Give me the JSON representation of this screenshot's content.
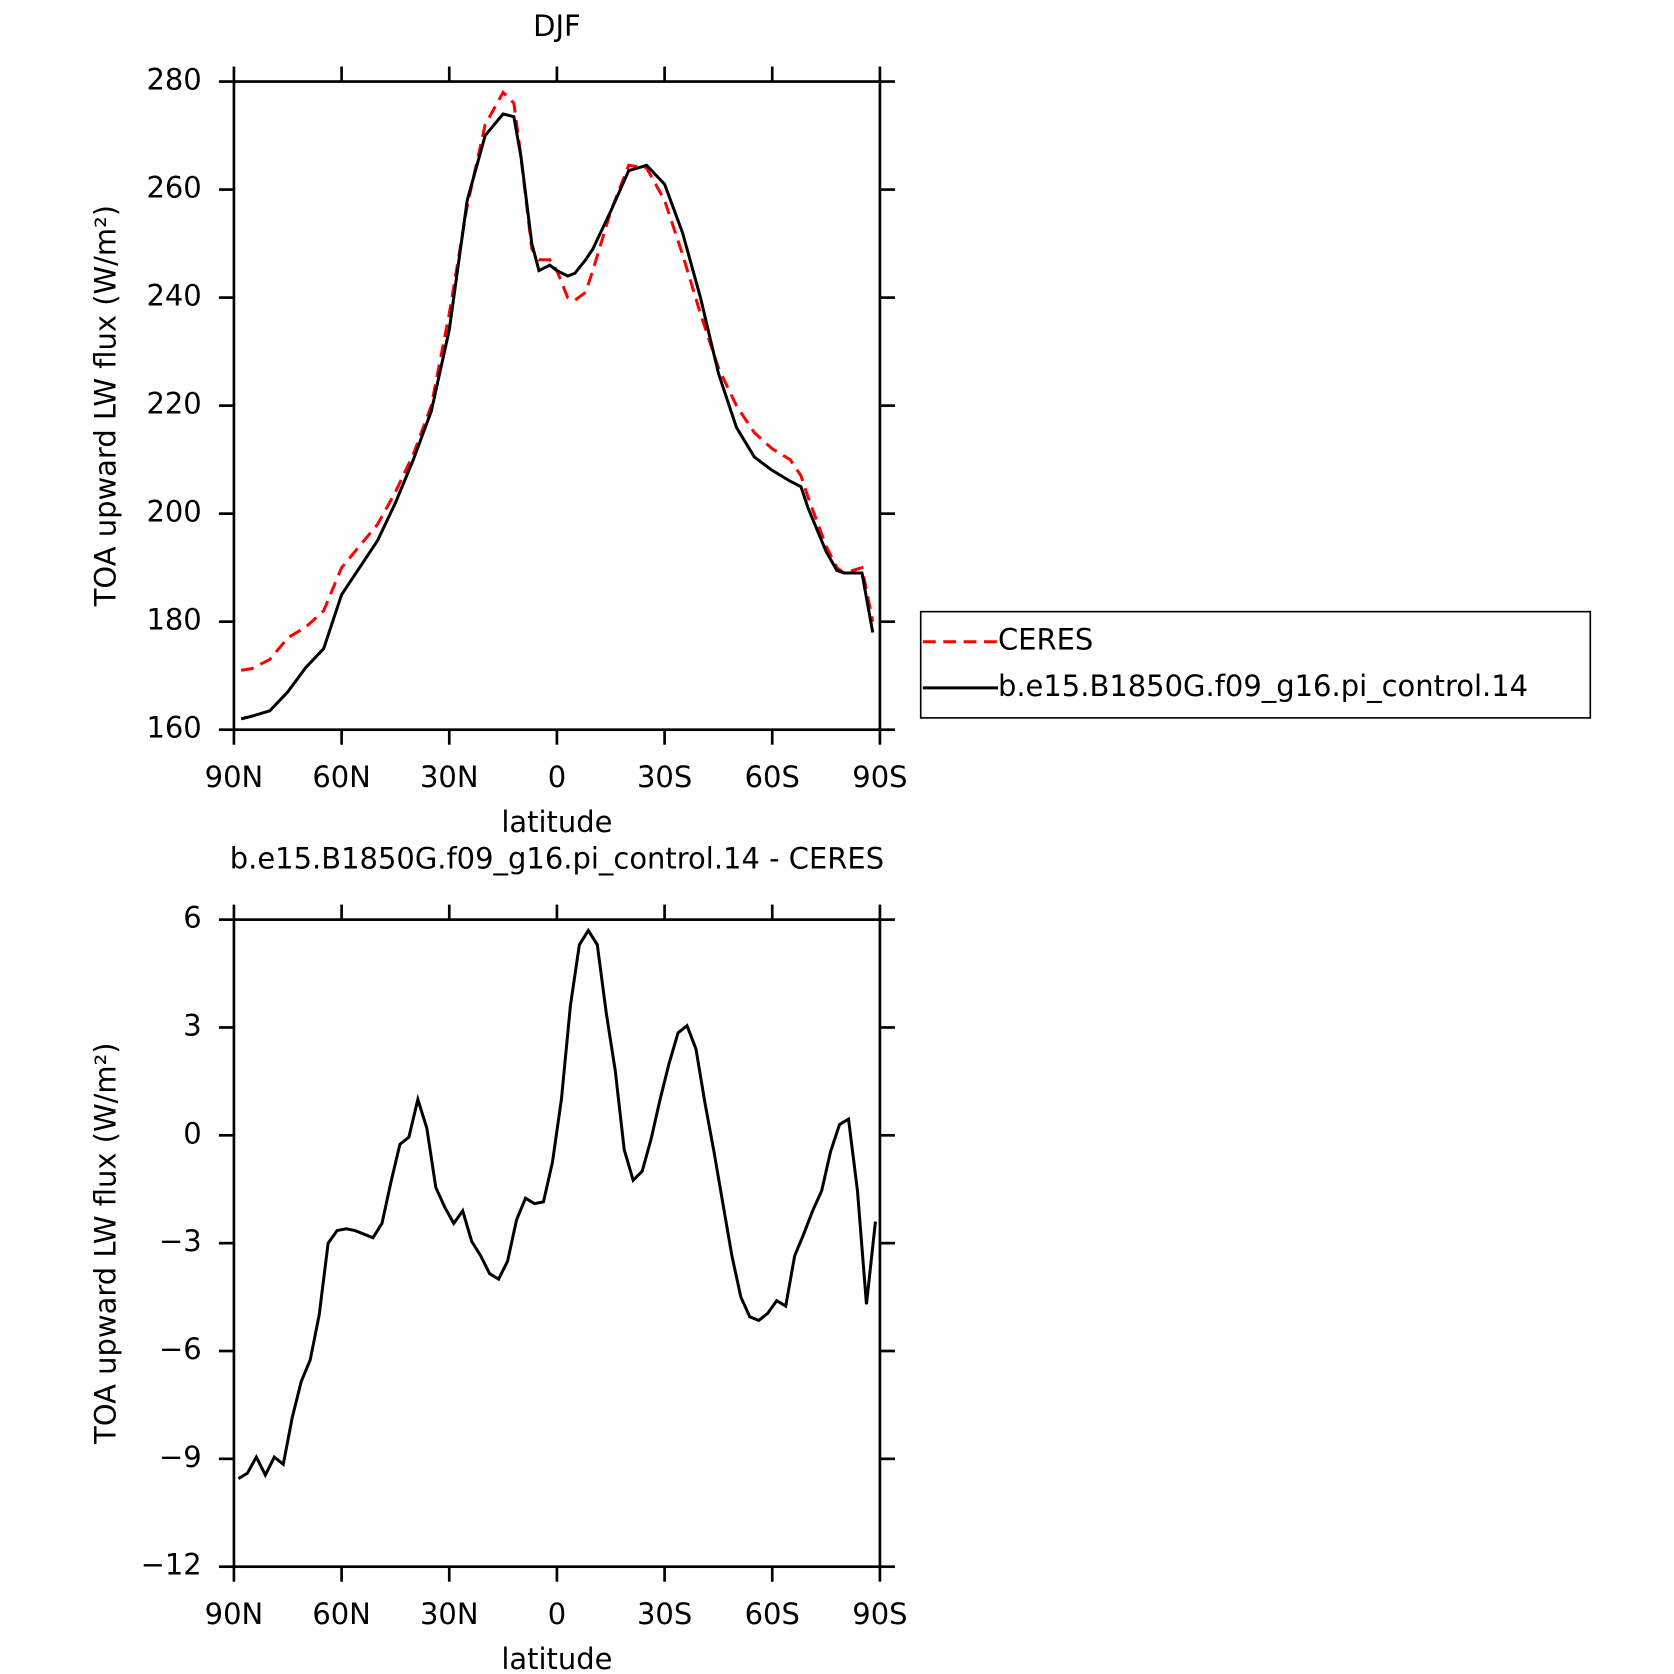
{
  "chart_data": [
    {
      "type": "line",
      "title": "DJF",
      "xlabel": "latitude",
      "ylabel": "TOA upward LW flux (W/m²)",
      "x": [
        88,
        85,
        80,
        75,
        70,
        65,
        60,
        55,
        50,
        45,
        40,
        35,
        30,
        25,
        20,
        15,
        12,
        10,
        7,
        5,
        2,
        0,
        -3,
        -5,
        -8,
        -10,
        -15,
        -20,
        -25,
        -30,
        -35,
        -40,
        -45,
        -50,
        -55,
        -60,
        -65,
        -68,
        -70,
        -75,
        -78,
        -80,
        -85,
        -88
      ],
      "series": [
        {
          "name": "CERES",
          "color": "#ff0000",
          "dash": true,
          "values": [
            171,
            171.3,
            173,
            177,
            179,
            182,
            190,
            194,
            198,
            204,
            211,
            220,
            237,
            257,
            272,
            278,
            276,
            266,
            249,
            247,
            247,
            245,
            240,
            239.5,
            241,
            245,
            256,
            264.5,
            264,
            258,
            248,
            237,
            227,
            220,
            215,
            212,
            210,
            207,
            203,
            194,
            190,
            189,
            190,
            180
          ]
        },
        {
          "name": "b.e15.B1850G.f09_g16.pi_control.14",
          "color": "#000000",
          "dash": false,
          "values": [
            162,
            162.5,
            163.5,
            167,
            171.5,
            175,
            185,
            190,
            195,
            202,
            210,
            219,
            234,
            258,
            270,
            274,
            273.5,
            266,
            250,
            245,
            246,
            245,
            244,
            244.5,
            247,
            249,
            256,
            263.5,
            264.5,
            261,
            252,
            240,
            226,
            216,
            210.5,
            208,
            206,
            205,
            201,
            193,
            189.5,
            189,
            189,
            178
          ]
        }
      ],
      "xlim": [
        90,
        -90
      ],
      "xticks": [
        {
          "value": 90,
          "label": "90N"
        },
        {
          "value": 60,
          "label": "60N"
        },
        {
          "value": 30,
          "label": "30N"
        },
        0,
        {
          "value": -30,
          "label": "30S"
        },
        {
          "value": -60,
          "label": "60S"
        },
        {
          "value": -90,
          "label": "90S"
        }
      ],
      "ylim": [
        160,
        280
      ],
      "yticks": [
        160,
        180,
        200,
        220,
        240,
        260,
        280
      ],
      "legend": "right"
    },
    {
      "type": "line",
      "title": "b.e15.B1850G.f09_g16.pi_control.14 - CERES",
      "xlabel": "latitude",
      "ylabel": "TOA upward LW flux (W/m²)",
      "x": [
        88.75,
        86.25,
        83.75,
        81.25,
        78.75,
        76.25,
        73.75,
        71.25,
        68.75,
        66.25,
        63.75,
        61.25,
        58.75,
        56.25,
        53.75,
        51.25,
        48.75,
        46.25,
        43.75,
        41.25,
        38.75,
        36.25,
        33.75,
        31.25,
        28.75,
        26.25,
        23.75,
        21.25,
        18.75,
        16.25,
        13.75,
        11.25,
        8.75,
        6.25,
        3.75,
        1.25,
        -1.25,
        -3.75,
        -6.25,
        -8.75,
        -11.25,
        -13.75,
        -16.25,
        -18.75,
        -21.25,
        -23.75,
        -26.25,
        -28.75,
        -31.25,
        -33.75,
        -36.25,
        -38.75,
        -41.25,
        -43.75,
        -46.25,
        -48.75,
        -51.25,
        -53.75,
        -56.25,
        -58.75,
        -61.25,
        -63.75,
        -66.25,
        -68.75,
        -71.25,
        -73.75,
        -76.25,
        -78.75,
        -81.25,
        -83.75,
        -86.25,
        -88.75
      ],
      "series": [
        {
          "name": "b.e15.B1850G.f09_g16.pi_control.14 - CERES",
          "color": "#000000",
          "dash": false,
          "values": [
            -9.55,
            -9.4,
            -8.95,
            -9.45,
            -8.95,
            -9.15,
            -7.85,
            -6.85,
            -6.25,
            -5,
            -3,
            -2.65,
            -2.6,
            -2.65,
            -2.75,
            -2.85,
            -2.45,
            -1.3,
            -0.25,
            -0.05,
            1,
            0.2,
            -1.45,
            -2,
            -2.45,
            -2.1,
            -2.95,
            -3.35,
            -3.85,
            -4,
            -3.5,
            -2.35,
            -1.75,
            -1.9,
            -1.85,
            -0.75,
            1,
            3.6,
            5.3,
            5.7,
            5.3,
            3.4,
            1.8,
            -0.4,
            -1.25,
            -1,
            -0.1,
            1,
            2,
            2.85,
            3.05,
            2.4,
            0.9,
            -0.45,
            -1.9,
            -3.35,
            -4.5,
            -5.05,
            -5.15,
            -4.95,
            -4.6,
            -4.75,
            -3.35,
            -2.75,
            -2.1,
            -1.55,
            -0.45,
            0.3,
            0.45,
            -1.55,
            -4.7,
            -2.4
          ]
        }
      ],
      "xlim": [
        90,
        -90
      ],
      "xticks": [
        {
          "value": 90,
          "label": "90N"
        },
        {
          "value": 60,
          "label": "60N"
        },
        {
          "value": 30,
          "label": "30N"
        },
        0,
        {
          "value": -30,
          "label": "30S"
        },
        {
          "value": -60,
          "label": "60S"
        },
        {
          "value": -90,
          "label": "90S"
        }
      ],
      "ylim": [
        -12,
        6
      ],
      "yticks": [
        {
          "value": -12,
          "label": "−12"
        },
        {
          "value": -9,
          "label": "−9"
        },
        {
          "value": -6,
          "label": "−6"
        },
        {
          "value": -3,
          "label": "−3"
        },
        0,
        3,
        6
      ]
    }
  ]
}
